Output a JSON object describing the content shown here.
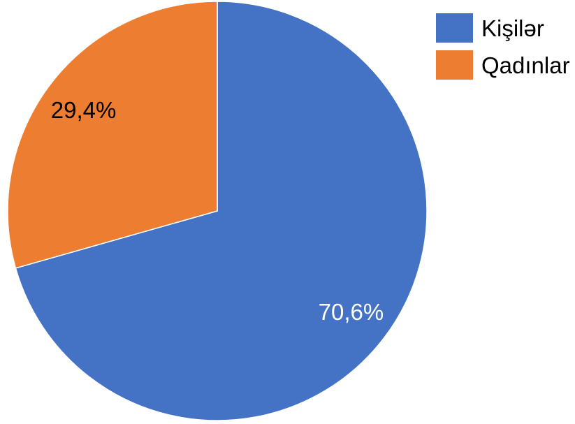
{
  "chart_data": {
    "type": "pie",
    "title": "",
    "start_angle_deg": 0,
    "direction": "clockwise",
    "legend_position": "top-right",
    "slices": [
      {
        "name": "Kişilər",
        "value": 70.6,
        "label": "70,6%",
        "color": "#4472C4",
        "label_color": "#FFFFFF"
      },
      {
        "name": "Qadınlar",
        "value": 29.4,
        "label": "29,4%",
        "color": "#ED7D31",
        "label_color": "#000000"
      }
    ]
  }
}
